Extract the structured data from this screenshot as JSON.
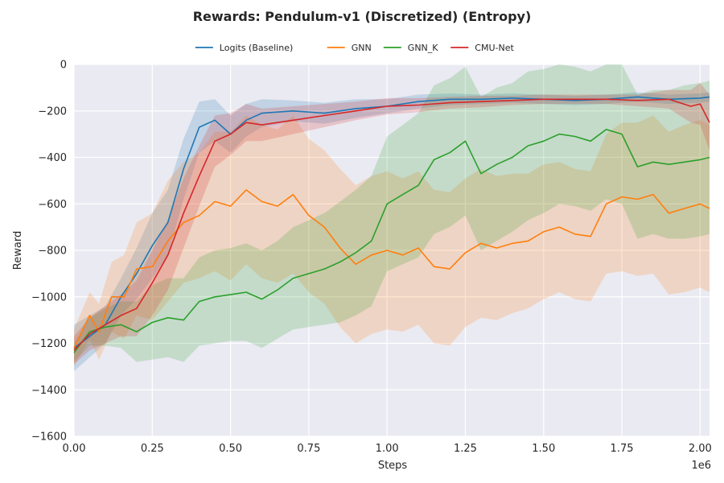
{
  "chart_data": {
    "type": "line",
    "title": "Rewards: Pendulum-v1 (Discretized) (Entropy)",
    "xlabel": "Steps",
    "ylabel": "Reward",
    "x_offset_label": "1e6",
    "xlim": [
      0,
      2.03
    ],
    "ylim": [
      -1600,
      0
    ],
    "xticks": [
      0,
      0.25,
      0.5,
      0.75,
      1.0,
      1.25,
      1.5,
      1.75,
      2.0
    ],
    "xtick_labels": [
      "0.00",
      "0.25",
      "0.50",
      "0.75",
      "1.00",
      "1.25",
      "1.50",
      "1.75",
      "2.00"
    ],
    "yticks": [
      0,
      -200,
      -400,
      -600,
      -800,
      -1000,
      -1200,
      -1400,
      -1600
    ],
    "ytick_labels": [
      "0",
      "−200",
      "−400",
      "−600",
      "−800",
      "−1000",
      "−1200",
      "−1400",
      "−1600"
    ],
    "grid": true,
    "background": "#eaeaf2",
    "legend_position": "top-center",
    "series": [
      {
        "name": "Logits (Baseline)",
        "color": "#1f77b4",
        "x": [
          0,
          0.05,
          0.1,
          0.15,
          0.2,
          0.25,
          0.3,
          0.35,
          0.4,
          0.45,
          0.5,
          0.55,
          0.6,
          0.7,
          0.8,
          0.9,
          1.0,
          1.1,
          1.2,
          1.3,
          1.4,
          1.5,
          1.6,
          1.7,
          1.8,
          1.9,
          2.0,
          2.03
        ],
        "values": [
          -1220,
          -1170,
          -1120,
          -1000,
          -900,
          -780,
          -680,
          -450,
          -270,
          -240,
          -300,
          -240,
          -210,
          -200,
          -210,
          -190,
          -180,
          -160,
          -150,
          -150,
          -145,
          -150,
          -155,
          -150,
          -140,
          -150,
          -145,
          -140
        ],
        "band": [
          100,
          90,
          80,
          80,
          110,
          140,
          140,
          130,
          110,
          90,
          80,
          70,
          60,
          45,
          45,
          40,
          30,
          30,
          25,
          20,
          20,
          20,
          20,
          20,
          20,
          20,
          20,
          20
        ]
      },
      {
        "name": "GNN",
        "color": "#ff7f0e",
        "x": [
          0,
          0.05,
          0.08,
          0.12,
          0.16,
          0.2,
          0.25,
          0.3,
          0.35,
          0.4,
          0.45,
          0.5,
          0.55,
          0.6,
          0.65,
          0.7,
          0.75,
          0.8,
          0.85,
          0.9,
          0.95,
          1.0,
          1.05,
          1.1,
          1.15,
          1.2,
          1.25,
          1.3,
          1.35,
          1.4,
          1.45,
          1.5,
          1.55,
          1.6,
          1.65,
          1.7,
          1.75,
          1.8,
          1.85,
          1.9,
          1.95,
          2.0,
          2.03
        ],
        "values": [
          -1220,
          -1080,
          -1150,
          -1000,
          -1000,
          -880,
          -870,
          -760,
          -680,
          -650,
          -590,
          -610,
          -540,
          -590,
          -610,
          -560,
          -650,
          -700,
          -790,
          -860,
          -820,
          -800,
          -820,
          -790,
          -870,
          -880,
          -810,
          -770,
          -790,
          -770,
          -760,
          -720,
          -700,
          -730,
          -740,
          -600,
          -570,
          -580,
          -560,
          -640,
          -620,
          -600,
          -620
        ],
        "band": [
          80,
          100,
          120,
          150,
          180,
          200,
          230,
          260,
          260,
          270,
          300,
          320,
          320,
          330,
          330,
          340,
          330,
          330,
          340,
          340,
          340,
          340,
          330,
          330,
          330,
          330,
          320,
          320,
          310,
          300,
          290,
          290,
          280,
          280,
          280,
          300,
          320,
          330,
          340,
          350,
          360,
          360,
          360
        ]
      },
      {
        "name": "GNN_K",
        "color": "#2ca02c",
        "x": [
          0,
          0.05,
          0.1,
          0.15,
          0.2,
          0.25,
          0.3,
          0.35,
          0.4,
          0.45,
          0.5,
          0.55,
          0.6,
          0.65,
          0.7,
          0.75,
          0.8,
          0.85,
          0.9,
          0.95,
          1.0,
          1.05,
          1.1,
          1.15,
          1.2,
          1.25,
          1.3,
          1.35,
          1.4,
          1.45,
          1.5,
          1.55,
          1.6,
          1.65,
          1.7,
          1.75,
          1.8,
          1.85,
          1.9,
          1.95,
          2.0,
          2.03
        ],
        "values": [
          -1240,
          -1150,
          -1130,
          -1120,
          -1150,
          -1110,
          -1090,
          -1100,
          -1020,
          -1000,
          -990,
          -980,
          -1010,
          -970,
          -920,
          -900,
          -880,
          -850,
          -810,
          -760,
          -600,
          -560,
          -520,
          -410,
          -380,
          -330,
          -470,
          -430,
          -400,
          -350,
          -330,
          -300,
          -310,
          -330,
          -280,
          -300,
          -440,
          -420,
          -430,
          -420,
          -410,
          -400
        ],
        "band": [
          40,
          60,
          80,
          100,
          130,
          160,
          170,
          180,
          190,
          200,
          200,
          210,
          210,
          210,
          220,
          230,
          240,
          260,
          270,
          280,
          290,
          300,
          310,
          320,
          320,
          320,
          330,
          330,
          320,
          320,
          310,
          300,
          300,
          300,
          300,
          300,
          310,
          310,
          320,
          330,
          330,
          330
        ]
      },
      {
        "name": "CMU-Net",
        "color": "#d62728",
        "x": [
          0,
          0.05,
          0.1,
          0.15,
          0.2,
          0.25,
          0.3,
          0.35,
          0.4,
          0.45,
          0.5,
          0.55,
          0.6,
          0.7,
          0.8,
          0.9,
          1.0,
          1.1,
          1.2,
          1.3,
          1.4,
          1.5,
          1.6,
          1.7,
          1.8,
          1.9,
          1.97,
          2.0,
          2.03
        ],
        "values": [
          -1230,
          -1160,
          -1120,
          -1080,
          -1050,
          -940,
          -820,
          -640,
          -480,
          -330,
          -300,
          -250,
          -260,
          -240,
          -220,
          -200,
          -180,
          -175,
          -165,
          -160,
          -155,
          -150,
          -150,
          -150,
          -155,
          -150,
          -180,
          -170,
          -250
        ],
        "band": [
          60,
          70,
          80,
          90,
          120,
          140,
          150,
          150,
          130,
          110,
          90,
          80,
          70,
          60,
          50,
          40,
          35,
          30,
          25,
          25,
          20,
          20,
          20,
          20,
          25,
          40,
          70,
          90,
          120
        ]
      }
    ]
  }
}
